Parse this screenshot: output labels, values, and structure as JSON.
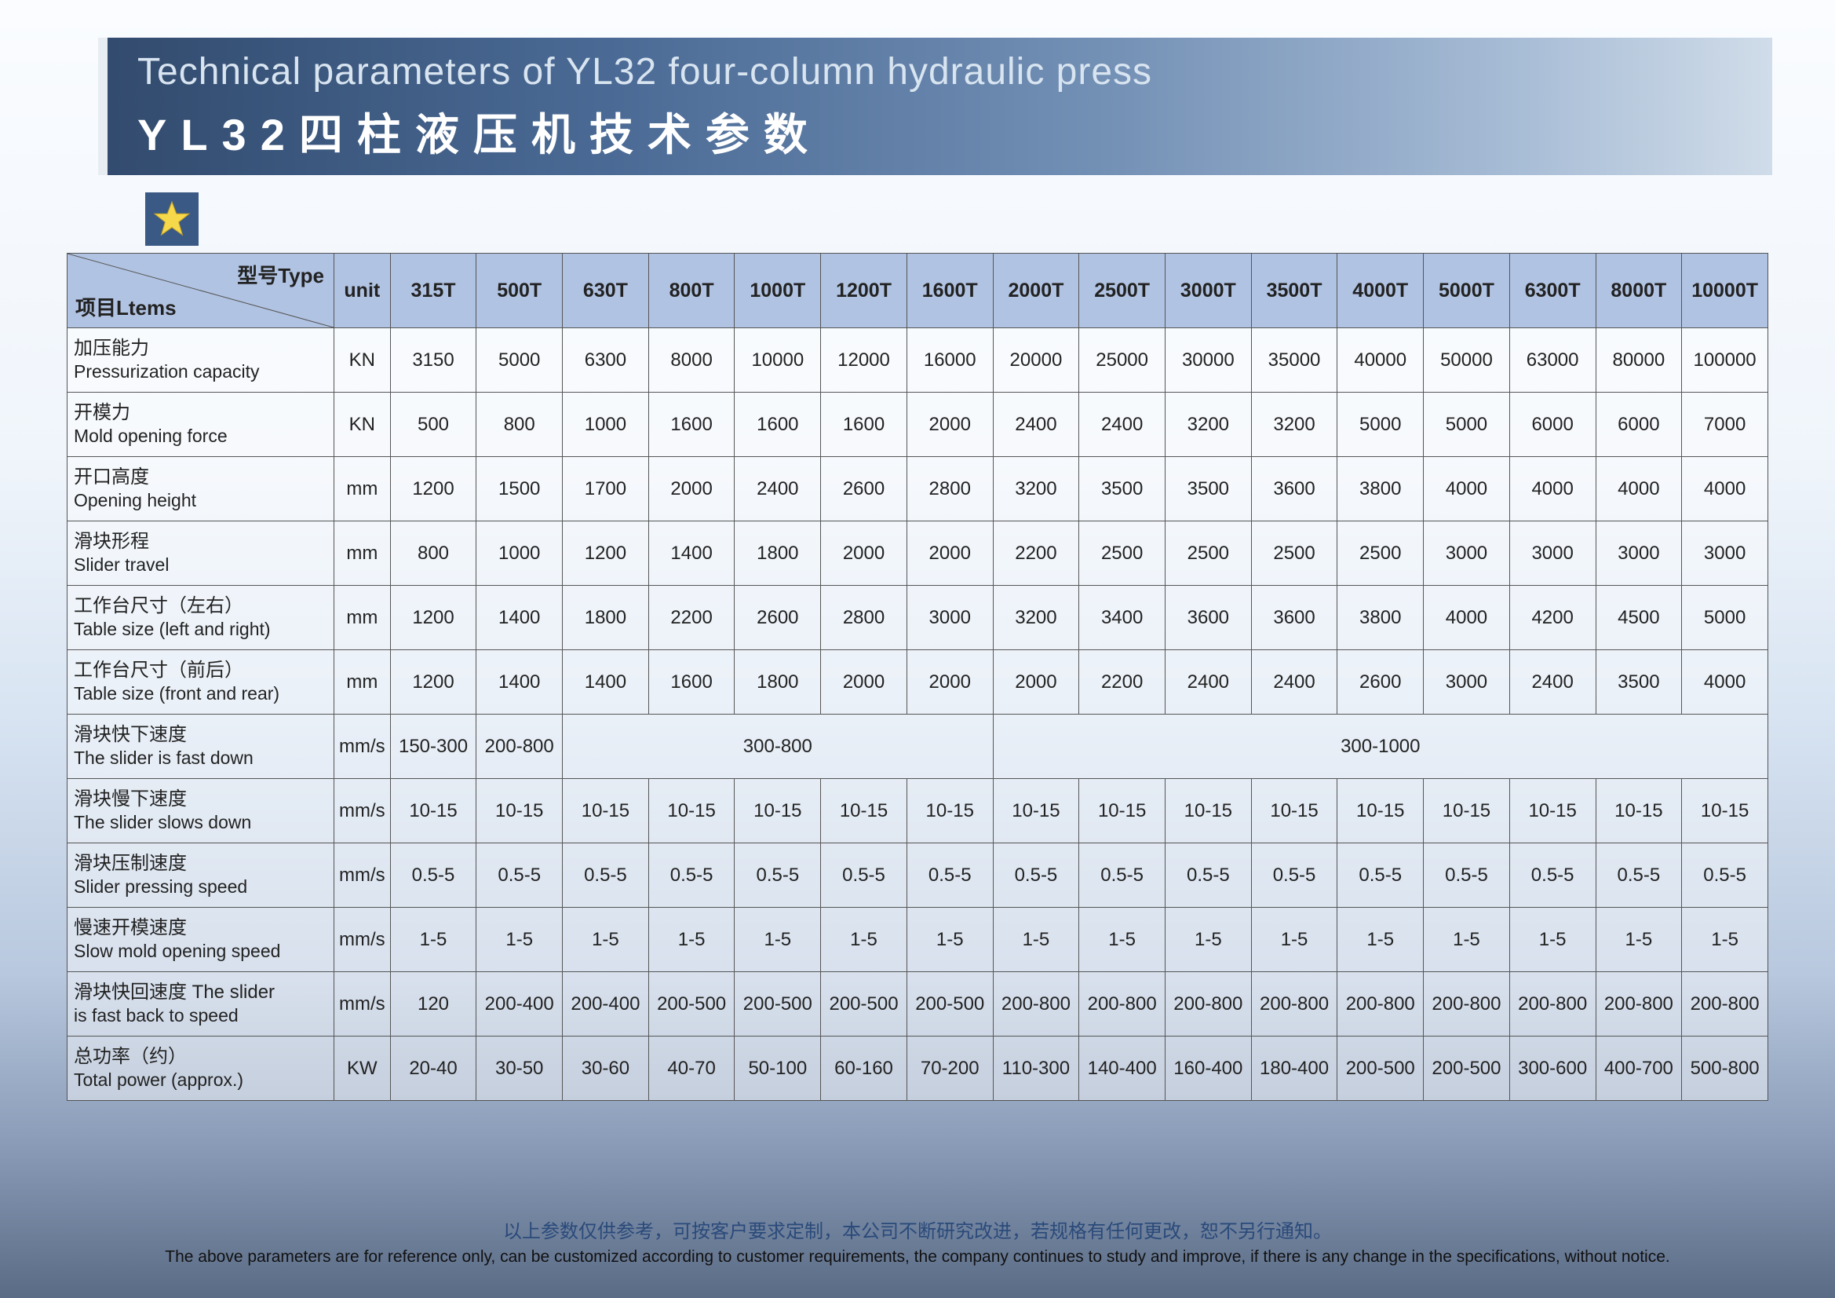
{
  "header": {
    "title_en": "Technical parameters of YL32 four-column hydraulic press",
    "title_cn": "YL32四柱液压机技术参数"
  },
  "table": {
    "corner_top": "型号Type",
    "corner_bottom": "项目Ltems",
    "unit_header": "unit",
    "types": [
      "315T",
      "500T",
      "630T",
      "800T",
      "1000T",
      "1200T",
      "1600T",
      "2000T",
      "2500T",
      "3000T",
      "3500T",
      "4000T",
      "5000T",
      "6300T",
      "8000T",
      "10000T"
    ],
    "rows": [
      {
        "cn": "加压能力",
        "en": "Pressurization capacity",
        "unit": "KN",
        "cells": [
          {
            "v": "3150"
          },
          {
            "v": "5000"
          },
          {
            "v": "6300"
          },
          {
            "v": "8000"
          },
          {
            "v": "10000"
          },
          {
            "v": "12000"
          },
          {
            "v": "16000"
          },
          {
            "v": "20000"
          },
          {
            "v": "25000"
          },
          {
            "v": "30000"
          },
          {
            "v": "35000"
          },
          {
            "v": "40000"
          },
          {
            "v": "50000"
          },
          {
            "v": "63000"
          },
          {
            "v": "80000"
          },
          {
            "v": "100000"
          }
        ]
      },
      {
        "cn": "开模力",
        "en": "Mold opening force",
        "unit": "KN",
        "cells": [
          {
            "v": "500"
          },
          {
            "v": "800"
          },
          {
            "v": "1000"
          },
          {
            "v": "1600"
          },
          {
            "v": "1600"
          },
          {
            "v": "1600"
          },
          {
            "v": "2000"
          },
          {
            "v": "2400"
          },
          {
            "v": "2400"
          },
          {
            "v": "3200"
          },
          {
            "v": "3200"
          },
          {
            "v": "5000"
          },
          {
            "v": "5000"
          },
          {
            "v": "6000"
          },
          {
            "v": "6000"
          },
          {
            "v": "7000"
          }
        ]
      },
      {
        "cn": "开口高度",
        "en": "Opening height",
        "unit": "mm",
        "cells": [
          {
            "v": "1200"
          },
          {
            "v": "1500"
          },
          {
            "v": "1700"
          },
          {
            "v": "2000"
          },
          {
            "v": "2400"
          },
          {
            "v": "2600"
          },
          {
            "v": "2800"
          },
          {
            "v": "3200"
          },
          {
            "v": "3500"
          },
          {
            "v": "3500"
          },
          {
            "v": "3600"
          },
          {
            "v": "3800"
          },
          {
            "v": "4000"
          },
          {
            "v": "4000"
          },
          {
            "v": "4000"
          },
          {
            "v": "4000"
          }
        ]
      },
      {
        "cn": "滑块形程",
        "en": "Slider travel",
        "unit": "mm",
        "cells": [
          {
            "v": "800"
          },
          {
            "v": "1000"
          },
          {
            "v": "1200"
          },
          {
            "v": "1400"
          },
          {
            "v": "1800"
          },
          {
            "v": "2000"
          },
          {
            "v": "2000"
          },
          {
            "v": "2200"
          },
          {
            "v": "2500"
          },
          {
            "v": "2500"
          },
          {
            "v": "2500"
          },
          {
            "v": "2500"
          },
          {
            "v": "3000"
          },
          {
            "v": "3000"
          },
          {
            "v": "3000"
          },
          {
            "v": "3000"
          }
        ]
      },
      {
        "cn": "工作台尺寸（左右）",
        "en": "Table size (left and right)",
        "unit": "mm",
        "cells": [
          {
            "v": "1200"
          },
          {
            "v": "1400"
          },
          {
            "v": "1800"
          },
          {
            "v": "2200"
          },
          {
            "v": "2600"
          },
          {
            "v": "2800"
          },
          {
            "v": "3000"
          },
          {
            "v": "3200"
          },
          {
            "v": "3400"
          },
          {
            "v": "3600"
          },
          {
            "v": "3600"
          },
          {
            "v": "3800"
          },
          {
            "v": "4000"
          },
          {
            "v": "4200"
          },
          {
            "v": "4500"
          },
          {
            "v": "5000"
          }
        ]
      },
      {
        "cn": "工作台尺寸（前后）",
        "en": "Table size (front and rear)",
        "unit": "mm",
        "cells": [
          {
            "v": "1200"
          },
          {
            "v": "1400"
          },
          {
            "v": "1400"
          },
          {
            "v": "1600"
          },
          {
            "v": "1800"
          },
          {
            "v": "2000"
          },
          {
            "v": "2000"
          },
          {
            "v": "2000"
          },
          {
            "v": "2200"
          },
          {
            "v": "2400"
          },
          {
            "v": "2400"
          },
          {
            "v": "2600"
          },
          {
            "v": "3000"
          },
          {
            "v": "2400"
          },
          {
            "v": "3500"
          },
          {
            "v": "4000"
          }
        ]
      },
      {
        "cn": "滑块快下速度",
        "en": "The slider is fast down",
        "unit": "mm/s",
        "cells": [
          {
            "v": "150-300"
          },
          {
            "v": "200-800"
          },
          {
            "v": "300-800",
            "span": 5
          },
          {
            "v": "300-1000",
            "span": 9
          }
        ]
      },
      {
        "cn": "滑块慢下速度",
        "en": "The slider slows down",
        "unit": "mm/s",
        "cells": [
          {
            "v": "10-15"
          },
          {
            "v": "10-15"
          },
          {
            "v": "10-15"
          },
          {
            "v": "10-15"
          },
          {
            "v": "10-15"
          },
          {
            "v": "10-15"
          },
          {
            "v": "10-15"
          },
          {
            "v": "10-15"
          },
          {
            "v": "10-15"
          },
          {
            "v": "10-15"
          },
          {
            "v": "10-15"
          },
          {
            "v": "10-15"
          },
          {
            "v": "10-15"
          },
          {
            "v": "10-15"
          },
          {
            "v": "10-15"
          },
          {
            "v": "10-15"
          }
        ]
      },
      {
        "cn": "滑块压制速度",
        "en": "Slider pressing speed",
        "unit": "mm/s",
        "cells": [
          {
            "v": "0.5-5"
          },
          {
            "v": "0.5-5"
          },
          {
            "v": "0.5-5"
          },
          {
            "v": "0.5-5"
          },
          {
            "v": "0.5-5"
          },
          {
            "v": "0.5-5"
          },
          {
            "v": "0.5-5"
          },
          {
            "v": "0.5-5"
          },
          {
            "v": "0.5-5"
          },
          {
            "v": "0.5-5"
          },
          {
            "v": "0.5-5"
          },
          {
            "v": "0.5-5"
          },
          {
            "v": "0.5-5"
          },
          {
            "v": "0.5-5"
          },
          {
            "v": "0.5-5"
          },
          {
            "v": "0.5-5"
          }
        ]
      },
      {
        "cn": "慢速开模速度",
        "en": "Slow mold opening speed",
        "unit": "mm/s",
        "cells": [
          {
            "v": "1-5"
          },
          {
            "v": "1-5"
          },
          {
            "v": "1-5"
          },
          {
            "v": "1-5"
          },
          {
            "v": "1-5"
          },
          {
            "v": "1-5"
          },
          {
            "v": "1-5"
          },
          {
            "v": "1-5"
          },
          {
            "v": "1-5"
          },
          {
            "v": "1-5"
          },
          {
            "v": "1-5"
          },
          {
            "v": "1-5"
          },
          {
            "v": "1-5"
          },
          {
            "v": "1-5"
          },
          {
            "v": "1-5"
          },
          {
            "v": "1-5"
          }
        ]
      },
      {
        "cn": "滑块快回速度 The slider",
        "en": "is fast back to speed",
        "unit": "mm/s",
        "cells": [
          {
            "v": "120"
          },
          {
            "v": "200-400"
          },
          {
            "v": "200-400"
          },
          {
            "v": "200-500"
          },
          {
            "v": "200-500"
          },
          {
            "v": "200-500"
          },
          {
            "v": "200-500"
          },
          {
            "v": "200-800"
          },
          {
            "v": "200-800"
          },
          {
            "v": "200-800"
          },
          {
            "v": "200-800"
          },
          {
            "v": "200-800"
          },
          {
            "v": "200-800"
          },
          {
            "v": "200-800"
          },
          {
            "v": "200-800"
          },
          {
            "v": "200-800"
          }
        ]
      },
      {
        "cn": "总功率（约）",
        "en": "Total power (approx.)",
        "unit": "KW",
        "cells": [
          {
            "v": "20-40"
          },
          {
            "v": "30-50"
          },
          {
            "v": "30-60"
          },
          {
            "v": "40-70"
          },
          {
            "v": "50-100"
          },
          {
            "v": "60-160"
          },
          {
            "v": "70-200"
          },
          {
            "v": "110-300"
          },
          {
            "v": "140-400"
          },
          {
            "v": "160-400"
          },
          {
            "v": "180-400"
          },
          {
            "v": "200-500"
          },
          {
            "v": "200-500"
          },
          {
            "v": "300-600"
          },
          {
            "v": "400-700"
          },
          {
            "v": "500-800"
          }
        ]
      }
    ]
  },
  "footer": {
    "cn": "以上参数仅供参考，可按客户要求定制，本公司不断研究改进，若规格有任何更改，恕不另行通知。",
    "en": "The above parameters are for reference only, can be customized according to customer requirements, the company continues to study and improve, if there is any change in the specifications, without notice."
  },
  "colors": {
    "banner_start": "#324b6e",
    "banner_end": "#d0dce9",
    "header_bg": "#b1c3e2",
    "star_fill": "#f5d94a",
    "star_bg": "#3a5a85",
    "border": "#555555"
  }
}
